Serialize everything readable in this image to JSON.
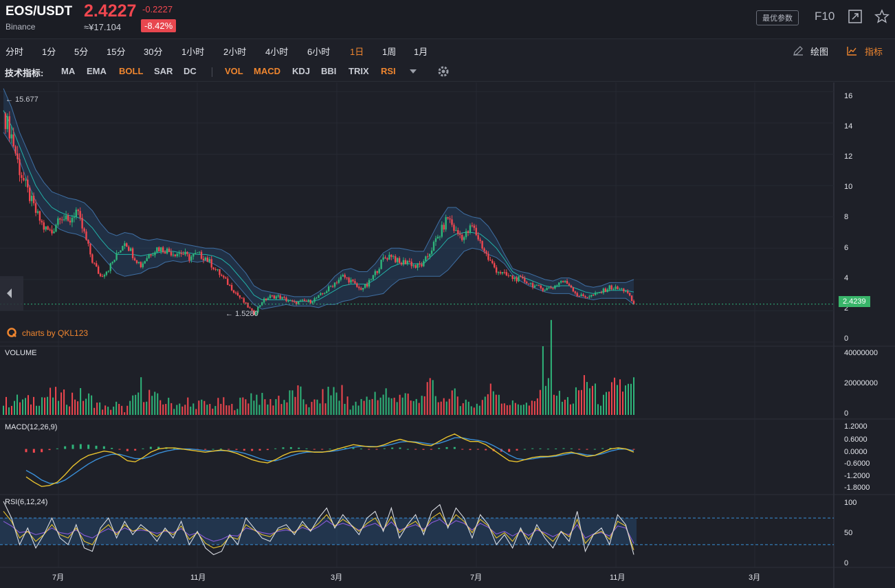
{
  "header": {
    "symbol": "EOS/USDT",
    "exchange": "Binance",
    "price": "2.4227",
    "change": "-0.2227",
    "cny": "≈¥17.104",
    "percent": "-8.42%",
    "settings_label": "最优参数",
    "f10_label": "F10"
  },
  "timeframes": [
    {
      "label": "分时",
      "active": false
    },
    {
      "label": "1分",
      "active": false
    },
    {
      "label": "5分",
      "active": false
    },
    {
      "label": "15分",
      "active": false
    },
    {
      "label": "30分",
      "active": false
    },
    {
      "label": "1小时",
      "active": false
    },
    {
      "label": "2小时",
      "active": false
    },
    {
      "label": "4小时",
      "active": false
    },
    {
      "label": "6小时",
      "active": false
    },
    {
      "label": "1日",
      "active": true
    },
    {
      "label": "1周",
      "active": false
    },
    {
      "label": "1月",
      "active": false
    }
  ],
  "tools": {
    "draw_label": "绘图",
    "indicator_label": "指标"
  },
  "indicators": {
    "label": "技术指标:",
    "main": [
      {
        "label": "MA",
        "active": false
      },
      {
        "label": "EMA",
        "active": false
      },
      {
        "label": "BOLL",
        "active": true
      },
      {
        "label": "SAR",
        "active": false
      },
      {
        "label": "DC",
        "active": false
      }
    ],
    "sub": [
      {
        "label": "VOL",
        "active": true
      },
      {
        "label": "MACD",
        "active": true
      },
      {
        "label": "KDJ",
        "active": false
      },
      {
        "label": "BBI",
        "active": false
      },
      {
        "label": "TRIX",
        "active": false
      },
      {
        "label": "RSI",
        "active": true
      }
    ]
  },
  "panels": {
    "volume_title": "VOLUME",
    "macd_title": "MACD(12,26,9)",
    "rsi_title": "RSI(6,12,24)"
  },
  "annotations": {
    "high": "← 15.677",
    "low": "← 1.5280",
    "last_price": "2.4239",
    "credit": "charts by QKL123"
  },
  "colors": {
    "up": "#2fb57a",
    "down": "#f0474f",
    "accent": "#f0862f",
    "band": "#29507a",
    "mid": "#22b2a8"
  },
  "chart_data": [
    {
      "type": "candlestick",
      "title": "",
      "ylim": [
        0,
        16.5
      ],
      "y_ticks": [
        "16",
        "14",
        "12",
        "10",
        "8",
        "6",
        "4",
        "2",
        "0"
      ],
      "x_ticks": [
        "7月",
        "11月",
        "3月",
        "7月",
        "11月",
        "3月"
      ],
      "close_series": [
        14.6,
        13.2,
        11.0,
        9.6,
        8.3,
        7.3,
        7.0,
        8.2,
        7.6,
        8.4,
        6.9,
        5.2,
        4.2,
        4.7,
        5.5,
        6.5,
        5.6,
        4.9,
        5.6,
        6.0,
        5.9,
        5.7,
        5.7,
        5.4,
        5.6,
        5.4,
        4.8,
        4.2,
        3.6,
        3.0,
        2.4,
        1.8,
        2.6,
        2.9,
        2.9,
        2.7,
        2.5,
        2.6,
        2.6,
        2.9,
        3.3,
        3.8,
        4.2,
        3.9,
        3.4,
        3.6,
        4.4,
        5.3,
        5.6,
        5.0,
        5.2,
        4.8,
        5.0,
        6.0,
        6.9,
        8.0,
        7.0,
        6.7,
        7.4,
        6.4,
        5.3,
        4.6,
        4.3,
        4.1,
        4.0,
        3.8,
        3.5,
        3.4,
        3.5,
        3.9,
        3.7,
        3.0,
        2.9,
        3.0,
        3.2,
        3.5,
        3.4,
        3.3,
        2.42
      ],
      "upper_band": [
        16.2,
        15.0,
        13.4,
        12.2,
        11.0,
        10.2,
        9.6,
        9.4,
        9.2,
        9.1,
        8.9,
        8.4,
        7.6,
        7.0,
        6.8,
        7.0,
        6.9,
        6.6,
        6.5,
        6.6,
        6.5,
        6.4,
        6.3,
        6.2,
        6.1,
        6.0,
        6.0,
        5.9,
        5.6,
        5.0,
        4.4,
        3.6,
        3.3,
        3.2,
        3.1,
        3.0,
        2.9,
        2.9,
        2.9,
        3.2,
        3.6,
        4.2,
        4.6,
        4.7,
        4.5,
        4.5,
        5.0,
        5.7,
        6.0,
        6.0,
        5.9,
        5.8,
        5.8,
        6.8,
        7.8,
        8.6,
        8.6,
        8.2,
        8.0,
        7.9,
        7.4,
        6.6,
        5.6,
        4.7,
        4.5,
        4.4,
        4.2,
        4.0,
        3.9,
        4.1,
        4.1,
        3.9,
        3.6,
        3.5,
        3.6,
        3.8,
        3.8,
        3.8,
        4.0
      ],
      "middle_band": [
        14.8,
        13.8,
        12.5,
        11.2,
        10.0,
        9.2,
        8.6,
        8.3,
        8.1,
        8.0,
        7.8,
        7.3,
        6.6,
        6.0,
        5.6,
        5.6,
        5.6,
        5.5,
        5.6,
        5.7,
        5.8,
        5.8,
        5.7,
        5.7,
        5.6,
        5.6,
        5.5,
        5.3,
        4.9,
        4.3,
        3.7,
        3.0,
        2.7,
        2.7,
        2.7,
        2.7,
        2.6,
        2.6,
        2.6,
        2.7,
        3.0,
        3.3,
        3.6,
        3.7,
        3.7,
        3.7,
        4.0,
        4.4,
        4.8,
        5.0,
        5.0,
        5.0,
        5.0,
        5.5,
        6.0,
        6.6,
        6.9,
        7.0,
        7.0,
        6.9,
        6.5,
        6.0,
        5.3,
        4.5,
        4.2,
        4.0,
        3.8,
        3.6,
        3.5,
        3.6,
        3.6,
        3.4,
        3.2,
        3.1,
        3.2,
        3.3,
        3.3,
        3.3,
        3.2
      ],
      "lower_band": [
        13.4,
        12.6,
        11.6,
        10.2,
        9.0,
        8.2,
        7.6,
        7.2,
        7.0,
        6.9,
        6.7,
        6.2,
        5.6,
        5.0,
        4.4,
        4.2,
        4.3,
        4.4,
        4.7,
        4.8,
        5.1,
        5.2,
        5.1,
        5.2,
        5.1,
        5.2,
        5.0,
        4.7,
        4.2,
        3.6,
        3.0,
        2.4,
        2.1,
        2.2,
        2.3,
        2.4,
        2.3,
        2.3,
        2.3,
        2.2,
        2.4,
        2.4,
        2.6,
        2.7,
        2.9,
        2.9,
        3.0,
        3.1,
        3.6,
        4.0,
        4.1,
        4.2,
        4.2,
        4.2,
        4.2,
        4.6,
        5.2,
        5.8,
        6.0,
        5.9,
        5.6,
        5.4,
        5.0,
        4.3,
        3.9,
        3.6,
        3.4,
        3.2,
        3.1,
        3.1,
        3.1,
        2.9,
        2.8,
        2.7,
        2.8,
        2.8,
        2.8,
        2.8,
        2.4
      ]
    },
    {
      "type": "bar",
      "title": "VOLUME",
      "y_ticks": [
        "40000000",
        "20000000",
        "0"
      ],
      "ylim": [
        0,
        40000000
      ],
      "values": [
        8000000.0,
        9000000.0,
        10000000.0,
        9000000.0,
        11000000.0,
        12000000.0,
        13000000.0,
        12000000.0,
        11000000.0,
        13000000.0,
        12000000.0,
        10000000.0,
        6000000.0,
        4000000.0,
        7000000.0,
        3000000.0,
        9000000.0,
        18000000.0,
        14000000.0,
        10000000.0,
        9000000.0,
        7000000.0,
        6000000.0,
        5000000.0,
        8000000.0,
        7000000.0,
        6000000.0,
        9000000.0,
        5000000.0,
        7000000.0,
        11000000.0,
        14000000.0,
        10000000.0,
        8000000.0,
        12000000.0,
        9000000.0,
        16000000.0,
        12000000.0,
        6000000.0,
        10000000.0,
        13000000.0,
        17000000.0,
        8000000.0,
        6000000.0,
        7000000.0,
        10000000.0,
        14000000.0,
        12000000.0,
        9000000.0,
        16000000.0,
        10000000.0,
        8000000.0,
        12000000.0,
        18000000.0,
        11000000.0,
        9000000.0,
        13000000.0,
        10000000.0,
        6000000.0,
        8000000.0,
        15000000.0,
        18000000.0,
        9000000.0,
        7000000.0,
        9000000.0,
        6000000.0,
        8000000.0,
        38000000.0,
        22000000.0,
        9000000.0,
        10000000.0,
        8000000.0,
        26000000.0,
        16000000.0,
        9000000.0,
        12000000.0,
        24000000.0,
        16000000.0,
        19000000.0
      ]
    },
    {
      "type": "line",
      "title": "MACD(12,26,9)",
      "y_ticks": [
        "1.2000",
        "0.6000",
        "0.0000",
        "-0.6000",
        "-1.2000",
        "-1.8000"
      ],
      "ylim": [
        -2.0,
        1.3
      ],
      "series": [
        {
          "values": [
            -1.3,
            -1.55,
            -1.75,
            -1.7,
            -1.55,
            -1.2,
            -0.8,
            -0.5,
            -0.3,
            -0.2,
            -0.1,
            -0.15,
            -0.3,
            -0.55,
            -0.6,
            -0.4,
            -0.15,
            0.0,
            0.05,
            0.05,
            0.0,
            -0.05,
            -0.1,
            -0.15,
            -0.1,
            -0.05,
            -0.1,
            -0.2,
            -0.35,
            -0.5,
            -0.6,
            -0.65,
            -0.5,
            -0.3,
            -0.15,
            -0.1,
            -0.1,
            -0.15,
            -0.15,
            -0.1,
            0.0,
            0.1,
            0.2,
            0.15,
            0.1,
            0.1,
            0.2,
            0.35,
            0.45,
            0.35,
            0.3,
            0.2,
            0.15,
            0.35,
            0.55,
            0.7,
            0.5,
            0.35,
            0.35,
            0.2,
            -0.05,
            -0.3,
            -0.55,
            -0.6,
            -0.5,
            -0.4,
            -0.35,
            -0.35,
            -0.3,
            -0.2,
            -0.15,
            -0.25,
            -0.35,
            -0.3,
            -0.15,
            0.0,
            0.05,
            0.0,
            -0.15
          ]
        },
        {
          "values": [
            -1.0,
            -1.2,
            -1.45,
            -1.6,
            -1.6,
            -1.45,
            -1.2,
            -0.95,
            -0.7,
            -0.5,
            -0.35,
            -0.25,
            -0.25,
            -0.35,
            -0.45,
            -0.45,
            -0.35,
            -0.2,
            -0.1,
            -0.03,
            0.0,
            0.0,
            -0.03,
            -0.08,
            -0.1,
            -0.08,
            -0.08,
            -0.12,
            -0.2,
            -0.32,
            -0.45,
            -0.55,
            -0.55,
            -0.45,
            -0.32,
            -0.22,
            -0.15,
            -0.14,
            -0.14,
            -0.12,
            -0.07,
            0.0,
            0.08,
            0.12,
            0.12,
            0.11,
            0.14,
            0.22,
            0.32,
            0.35,
            0.33,
            0.28,
            0.22,
            0.26,
            0.38,
            0.52,
            0.52,
            0.45,
            0.4,
            0.32,
            0.15,
            -0.05,
            -0.28,
            -0.45,
            -0.5,
            -0.46,
            -0.4,
            -0.37,
            -0.34,
            -0.27,
            -0.2,
            -0.21,
            -0.28,
            -0.3,
            -0.22,
            -0.1,
            -0.02,
            0.0,
            -0.08
          ]
        }
      ]
    },
    {
      "type": "line",
      "title": "RSI(6,12,24)",
      "y_ticks": [
        "100",
        "50",
        "0"
      ],
      "ylim": [
        0,
        100
      ],
      "series": [
        {
          "values": [
            95,
            70,
            30,
            55,
            25,
            45,
            70,
            40,
            30,
            60,
            25,
            20,
            55,
            70,
            40,
            65,
            45,
            60,
            50,
            35,
            55,
            40,
            65,
            30,
            50,
            25,
            15,
            20,
            45,
            30,
            70,
            55,
            40,
            35,
            55,
            60,
            45,
            65,
            50,
            70,
            85,
            55,
            75,
            60,
            45,
            70,
            80,
            50,
            85,
            40,
            60,
            75,
            45,
            80,
            90,
            55,
            85,
            70,
            40,
            75,
            60,
            30,
            45,
            25,
            55,
            30,
            60,
            40,
            25,
            50,
            35,
            80,
            20,
            45,
            55,
            30,
            75,
            60,
            15
          ]
        },
        {
          "values": [
            80,
            65,
            40,
            50,
            35,
            45,
            60,
            45,
            40,
            55,
            35,
            30,
            50,
            60,
            45,
            60,
            50,
            55,
            50,
            42,
            52,
            45,
            58,
            38,
            48,
            32,
            25,
            28,
            42,
            38,
            60,
            52,
            45,
            42,
            52,
            55,
            48,
            60,
            52,
            62,
            75,
            58,
            68,
            60,
            50,
            62,
            70,
            52,
            72,
            48,
            58,
            65,
            50,
            70,
            78,
            58,
            75,
            65,
            48,
            68,
            58,
            40,
            48,
            35,
            52,
            38,
            55,
            45,
            35,
            50,
            42,
            68,
            32,
            45,
            50,
            38,
            65,
            58,
            22
          ]
        },
        {
          "values": [
            65,
            58,
            48,
            50,
            45,
            48,
            55,
            48,
            46,
            52,
            44,
            40,
            48,
            54,
            48,
            55,
            50,
            52,
            50,
            47,
            50,
            48,
            54,
            44,
            48,
            40,
            35,
            38,
            44,
            43,
            55,
            52,
            48,
            46,
            50,
            52,
            49,
            56,
            51,
            57,
            66,
            58,
            62,
            58,
            52,
            58,
            62,
            54,
            64,
            52,
            56,
            60,
            53,
            63,
            68,
            58,
            66,
            62,
            52,
            62,
            56,
            46,
            50,
            43,
            50,
            44,
            52,
            48,
            42,
            48,
            45,
            60,
            40,
            46,
            48,
            43,
            58,
            55,
            32
          ]
        }
      ]
    }
  ]
}
